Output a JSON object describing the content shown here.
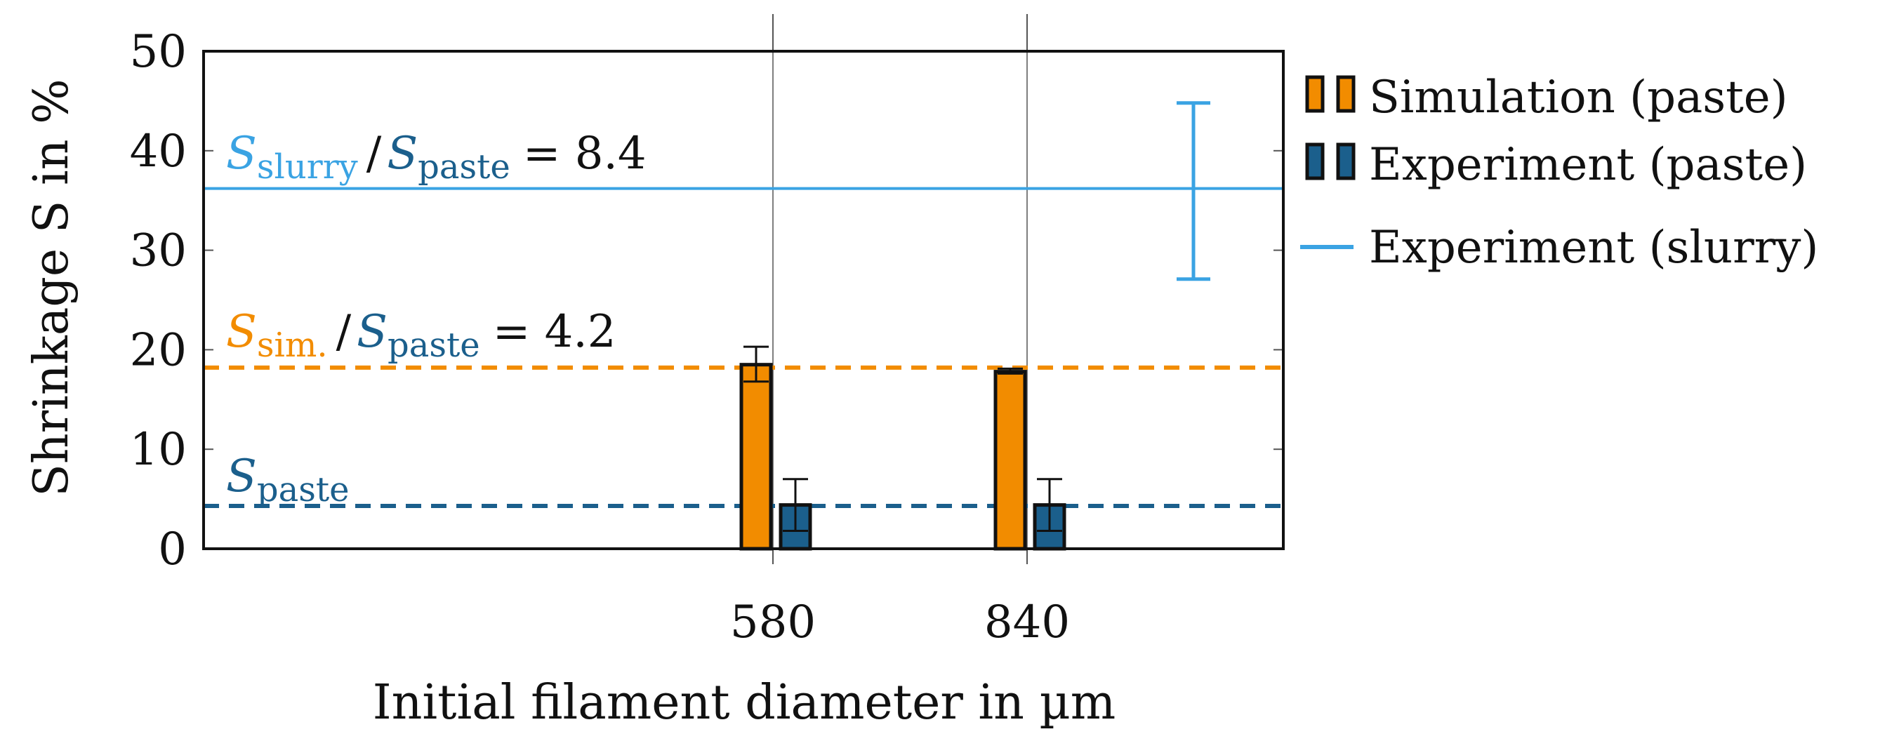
{
  "chart_data": {
    "type": "bar",
    "categories": [
      "580",
      "840"
    ],
    "xlabel": "Initial filament diameter in µm",
    "ylabel": "Shrinkage S in %",
    "ylim": [
      0,
      50
    ],
    "yticks": [
      0,
      10,
      20,
      30,
      40,
      50
    ],
    "grid": "x-ticks only",
    "legend_position": "outside-right",
    "series": [
      {
        "name": "Simulation (paste)",
        "kind": "bar",
        "color": "#f28c00",
        "values": [
          18.5,
          17.8
        ],
        "error": [
          [
            16.8,
            20.3
          ],
          [
            17.6,
            18.1
          ]
        ]
      },
      {
        "name": "Experiment (paste)",
        "kind": "bar",
        "color": "#1b5f8c",
        "values": [
          4.4,
          4.4
        ],
        "error": [
          [
            1.8,
            7.0
          ],
          [
            1.8,
            7.0
          ]
        ]
      },
      {
        "name": "Experiment (slurry)",
        "kind": "hline",
        "color": "#3aa3e3",
        "value": 36.2,
        "error": [
          27.1,
          44.8
        ]
      }
    ],
    "reference_lines": [
      {
        "label": "S_sim.",
        "value": 18.2,
        "color": "#f28c00",
        "style": "dashed"
      },
      {
        "label": "S_paste",
        "value": 4.3,
        "color": "#1b5f8c",
        "style": "dashed"
      }
    ],
    "annotations": {
      "ratio_slurry": {
        "num": "slurry",
        "den": "paste",
        "value": "= 8.4"
      },
      "ratio_sim": {
        "num": "sim.",
        "den": "paste",
        "value": "= 4.2"
      },
      "paste": {
        "sub": "paste"
      }
    },
    "annotation_symbol": "S",
    "fraction_slash": "/"
  }
}
